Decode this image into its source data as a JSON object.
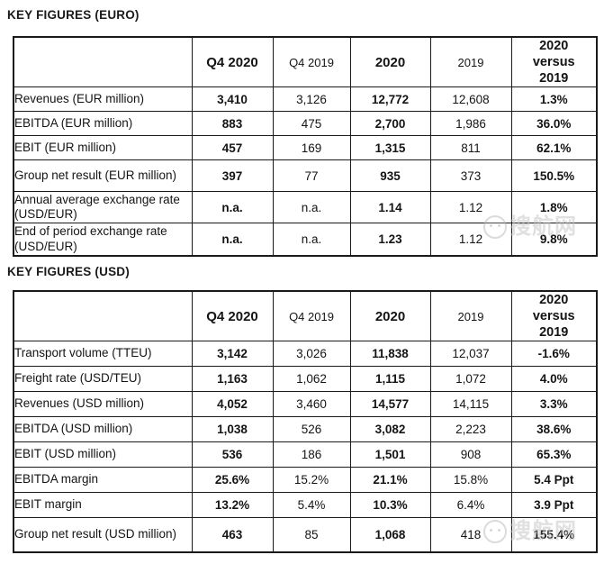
{
  "titles": {
    "euro": "KEY FIGURES (EURO)",
    "usd": "KEY FIGURES (USD)"
  },
  "columns": {
    "q4_2020": "Q4 2020",
    "q4_2019": "Q4 2019",
    "fy_2020": "2020",
    "fy_2019": "2019",
    "versus": "2020\nversus\n2019"
  },
  "euro_table": {
    "rows": [
      {
        "label": "Revenues (EUR million)",
        "c": [
          "3,410",
          "3,126",
          "12,772",
          "12,608",
          "1.3%"
        ]
      },
      {
        "label": "EBITDA (EUR million)",
        "c": [
          "883",
          "475",
          "2,700",
          "1,986",
          "36.0%"
        ]
      },
      {
        "label": "EBIT (EUR million)",
        "c": [
          "457",
          "169",
          "1,315",
          "811",
          "62.1%"
        ]
      },
      {
        "label": "Group net result (EUR million)",
        "c": [
          "397",
          "77",
          "935",
          "373",
          "150.5%"
        ]
      },
      {
        "label": "Annual average exchange rate (USD/EUR)",
        "c": [
          "n.a.",
          "n.a.",
          "1.14",
          "1.12",
          "1.8%"
        ]
      },
      {
        "label": "End of period exchange rate (USD/EUR)",
        "c": [
          "n.a.",
          "n.a.",
          "1.23",
          "1.12",
          "9.8%"
        ]
      }
    ]
  },
  "usd_table": {
    "rows": [
      {
        "label": "Transport volume (TTEU)",
        "c": [
          "3,142",
          "3,026",
          "11,838",
          "12,037",
          "-1.6%"
        ]
      },
      {
        "label": "Freight rate (USD/TEU)",
        "c": [
          "1,163",
          "1,062",
          "1,115",
          "1,072",
          "4.0%"
        ]
      },
      {
        "label": "Revenues (USD million)",
        "c": [
          "4,052",
          "3,460",
          "14,577",
          "14,115",
          "3.3%"
        ]
      },
      {
        "label": "EBITDA (USD million)",
        "c": [
          "1,038",
          "526",
          "3,082",
          "2,223",
          "38.6%"
        ]
      },
      {
        "label": "EBIT (USD million)",
        "c": [
          "536",
          "186",
          "1,501",
          "908",
          "65.3%"
        ]
      },
      {
        "label": "EBITDA margin",
        "c": [
          "25.6%",
          "15.2%",
          "21.1%",
          "15.8%",
          "5.4 Ppt"
        ]
      },
      {
        "label": "EBIT margin",
        "c": [
          "13.2%",
          "5.4%",
          "10.3%",
          "6.4%",
          "3.9 Ppt"
        ]
      },
      {
        "label": "Group net result (USD million)",
        "c": [
          "463",
          "85",
          "1,068",
          "418",
          "155.4%"
        ]
      }
    ]
  },
  "watermark": {
    "text": "搜航网",
    "color": "#c2c2c2"
  }
}
